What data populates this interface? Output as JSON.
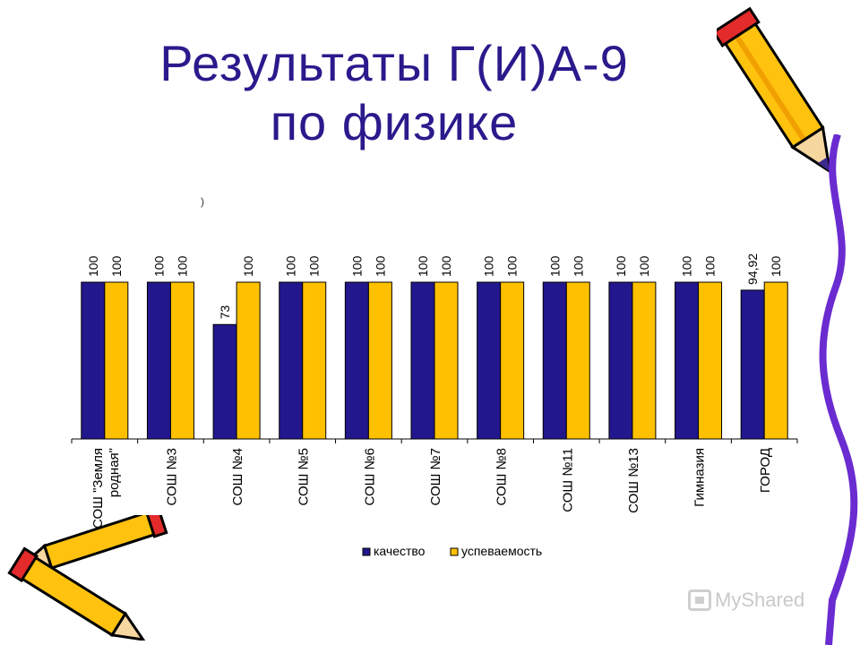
{
  "title_line1": "Результаты Г(И)А-9",
  "title_line2": "по физике",
  "stray_mark": ")",
  "watermark": "MyShared",
  "colors": {
    "title": "#2a1a8c",
    "quality": "#22178c",
    "success": "#ffc000"
  },
  "chart_data": {
    "type": "bar",
    "categories": [
      "СОШ \"Земля родная\"",
      "СОШ №3",
      "СОШ №4",
      "СОШ №5",
      "СОШ №6",
      "СОШ №7",
      "СОШ №8",
      "СОШ №11",
      "СОШ №13",
      "Гимназия",
      "ГОРОД"
    ],
    "series": [
      {
        "name": "качество",
        "values": [
          100,
          100,
          73,
          100,
          100,
          100,
          100,
          100,
          100,
          100,
          94.92
        ],
        "labels": [
          "100",
          "100",
          "73",
          "100",
          "100",
          "100",
          "100",
          "100",
          "100",
          "100",
          "94,92"
        ]
      },
      {
        "name": "успеваемость",
        "values": [
          100,
          100,
          100,
          100,
          100,
          100,
          100,
          100,
          100,
          100,
          100
        ],
        "labels": [
          "100",
          "100",
          "100",
          "100",
          "100",
          "100",
          "100",
          "100",
          "100",
          "100",
          "100"
        ]
      }
    ],
    "ylim": [
      0,
      100
    ],
    "grid": false,
    "legend_position": "bottom"
  }
}
